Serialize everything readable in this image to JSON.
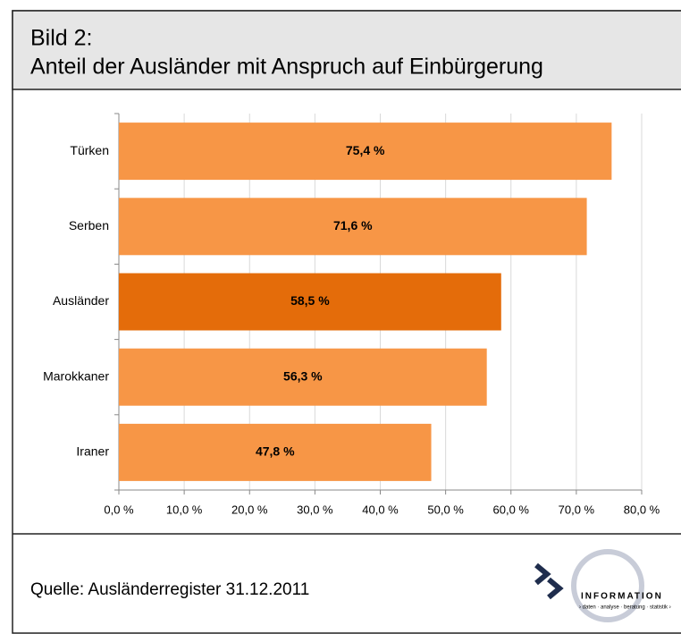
{
  "chart_data": {
    "type": "bar",
    "orientation": "horizontal",
    "title": "Bild 2:",
    "subtitle": "Anteil der Ausländer mit Anspruch auf Einbürgerung",
    "categories": [
      "Türken",
      "Serben",
      "Ausländer",
      "Marokkaner",
      "Iraner"
    ],
    "values": [
      75.4,
      71.6,
      58.5,
      56.3,
      47.8
    ],
    "value_labels": [
      "75,4 %",
      "71,6 %",
      "58,5 %",
      "56,3 %",
      "47,8 %"
    ],
    "colors": [
      "#f79646",
      "#f79646",
      "#e46c0a",
      "#f79646",
      "#f79646"
    ],
    "xlim": [
      0,
      80
    ],
    "xticks": [
      {
        "value": 0,
        "label": "0,0 %"
      },
      {
        "value": 10,
        "label": "10,0 %"
      },
      {
        "value": 20,
        "label": "20,0 %"
      },
      {
        "value": 30,
        "label": "30,0 %"
      },
      {
        "value": 40,
        "label": "40,0 %"
      },
      {
        "value": 50,
        "label": "50,0 %"
      },
      {
        "value": 60,
        "label": "60,0 %"
      },
      {
        "value": 70,
        "label": "70,0 %"
      },
      {
        "value": 80,
        "label": "80,0 %"
      }
    ],
    "grid": true,
    "source": "Quelle:  Ausländerregister 31.12.2011",
    "logo": {
      "name": "INFORMATION",
      "tagline": "› daten · analyse · beratung · statistik ›"
    }
  }
}
